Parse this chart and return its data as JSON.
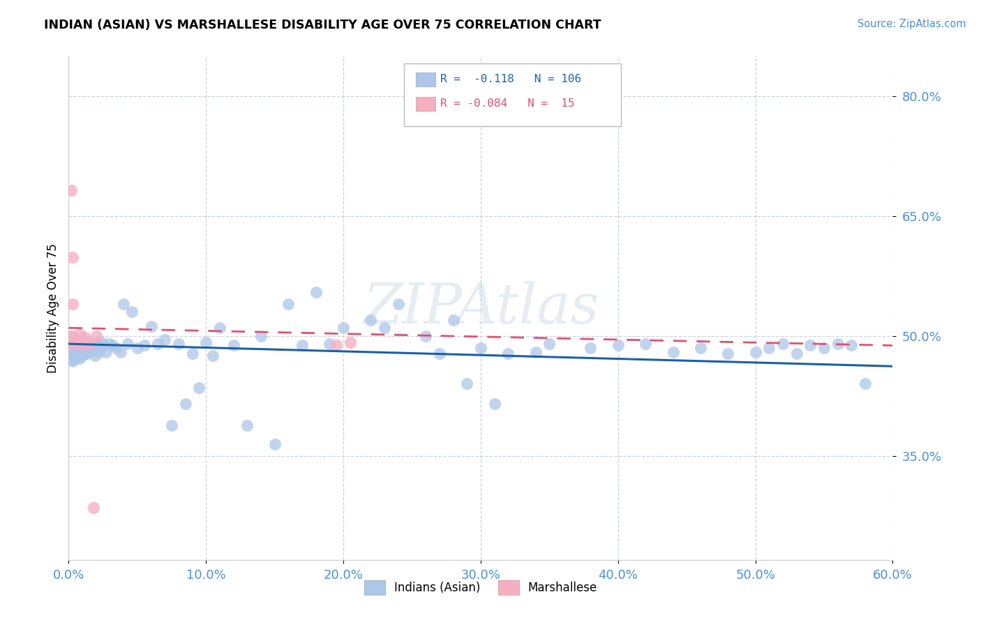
{
  "title": "INDIAN (ASIAN) VS MARSHALLESE DISABILITY AGE OVER 75 CORRELATION CHART",
  "source": "Source: ZipAtlas.com",
  "ylabel": "Disability Age Over 75",
  "xlim": [
    0.0,
    0.6
  ],
  "ylim": [
    0.22,
    0.85
  ],
  "xticks": [
    0.0,
    0.1,
    0.2,
    0.3,
    0.4,
    0.5,
    0.6
  ],
  "yticks": [
    0.35,
    0.5,
    0.65,
    0.8
  ],
  "color_blue": "#aec6e8",
  "color_pink": "#f5afc3",
  "color_blue_line": "#1a5fa8",
  "color_pink_line": "#e05070",
  "color_grid": "#c5cfd8",
  "background_color": "#ffffff",
  "blue_scatter_x": [
    0.001,
    0.001,
    0.001,
    0.002,
    0.002,
    0.002,
    0.002,
    0.003,
    0.003,
    0.003,
    0.003,
    0.004,
    0.004,
    0.004,
    0.005,
    0.005,
    0.005,
    0.006,
    0.006,
    0.006,
    0.007,
    0.007,
    0.008,
    0.008,
    0.008,
    0.009,
    0.009,
    0.01,
    0.01,
    0.01,
    0.011,
    0.011,
    0.012,
    0.012,
    0.013,
    0.013,
    0.014,
    0.015,
    0.015,
    0.016,
    0.017,
    0.018,
    0.019,
    0.02,
    0.021,
    0.022,
    0.023,
    0.024,
    0.025,
    0.027,
    0.03,
    0.032,
    0.035,
    0.038,
    0.04,
    0.043,
    0.046,
    0.05,
    0.055,
    0.06,
    0.065,
    0.07,
    0.08,
    0.09,
    0.1,
    0.11,
    0.12,
    0.14,
    0.16,
    0.18,
    0.2,
    0.22,
    0.24,
    0.26,
    0.28,
    0.3,
    0.32,
    0.35,
    0.38,
    0.4,
    0.42,
    0.44,
    0.46,
    0.48,
    0.5,
    0.51,
    0.52,
    0.53,
    0.54,
    0.55,
    0.56,
    0.57,
    0.58,
    0.19,
    0.27,
    0.31,
    0.34,
    0.29,
    0.23,
    0.17,
    0.13,
    0.15,
    0.075,
    0.085,
    0.095,
    0.105
  ],
  "blue_scatter_y": [
    0.49,
    0.49,
    0.48,
    0.495,
    0.485,
    0.488,
    0.492,
    0.5,
    0.47,
    0.488,
    0.468,
    0.482,
    0.478,
    0.492,
    0.49,
    0.48,
    0.472,
    0.485,
    0.478,
    0.492,
    0.488,
    0.475,
    0.48,
    0.488,
    0.472,
    0.485,
    0.478,
    0.482,
    0.49,
    0.475,
    0.488,
    0.478,
    0.492,
    0.48,
    0.485,
    0.478,
    0.492,
    0.48,
    0.485,
    0.488,
    0.482,
    0.49,
    0.475,
    0.492,
    0.488,
    0.48,
    0.485,
    0.492,
    0.488,
    0.48,
    0.49,
    0.488,
    0.485,
    0.48,
    0.54,
    0.49,
    0.53,
    0.485,
    0.488,
    0.512,
    0.49,
    0.495,
    0.49,
    0.478,
    0.492,
    0.51,
    0.488,
    0.5,
    0.54,
    0.555,
    0.51,
    0.52,
    0.54,
    0.5,
    0.52,
    0.485,
    0.478,
    0.49,
    0.485,
    0.488,
    0.49,
    0.48,
    0.485,
    0.478,
    0.48,
    0.485,
    0.49,
    0.478,
    0.488,
    0.485,
    0.49,
    0.488,
    0.44,
    0.49,
    0.478,
    0.415,
    0.48,
    0.44,
    0.51,
    0.488,
    0.388,
    0.365,
    0.388,
    0.415,
    0.435,
    0.475
  ],
  "pink_scatter_x": [
    0.001,
    0.001,
    0.002,
    0.003,
    0.003,
    0.005,
    0.006,
    0.008,
    0.01,
    0.012,
    0.015,
    0.018,
    0.02,
    0.195,
    0.205
  ],
  "pink_scatter_y": [
    0.5,
    0.49,
    0.682,
    0.598,
    0.54,
    0.495,
    0.49,
    0.502,
    0.49,
    0.498,
    0.49,
    0.285,
    0.5,
    0.488,
    0.492
  ],
  "blue_line_x0": 0.0,
  "blue_line_x1": 0.6,
  "blue_line_y0": 0.49,
  "blue_line_y1": 0.462,
  "pink_line_x0": 0.0,
  "pink_line_x1": 0.6,
  "pink_line_y0": 0.51,
  "pink_line_y1": 0.488
}
